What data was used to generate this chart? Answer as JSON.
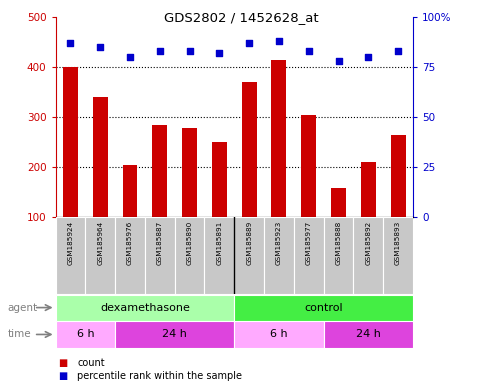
{
  "title": "GDS2802 / 1452628_at",
  "samples": [
    "GSM185924",
    "GSM185964",
    "GSM185976",
    "GSM185887",
    "GSM185890",
    "GSM185891",
    "GSM185889",
    "GSM185923",
    "GSM185977",
    "GSM185888",
    "GSM185892",
    "GSM185893"
  ],
  "counts": [
    400,
    340,
    205,
    285,
    278,
    250,
    370,
    415,
    305,
    158,
    210,
    265
  ],
  "percentile_ranks": [
    87,
    85,
    80,
    83,
    83,
    82,
    87,
    88,
    83,
    78,
    80,
    83
  ],
  "ylim_left": [
    100,
    500
  ],
  "ylim_right": [
    0,
    100
  ],
  "yticks_left": [
    100,
    200,
    300,
    400,
    500
  ],
  "yticks_right": [
    0,
    25,
    50,
    75,
    100
  ],
  "yticklabels_right": [
    "0",
    "25",
    "50",
    "75",
    "100%"
  ],
  "bar_color": "#cc0000",
  "scatter_color": "#0000cc",
  "agent_groups": [
    {
      "label": "dexamethasone",
      "start": 0,
      "end": 6,
      "color": "#aaffaa"
    },
    {
      "label": "control",
      "start": 6,
      "end": 12,
      "color": "#44ee44"
    }
  ],
  "time_groups": [
    {
      "label": "6 h",
      "start": 0,
      "end": 2,
      "color": "#ffaaff"
    },
    {
      "label": "24 h",
      "start": 2,
      "end": 6,
      "color": "#dd44dd"
    },
    {
      "label": "6 h",
      "start": 6,
      "end": 9,
      "color": "#ffaaff"
    },
    {
      "label": "24 h",
      "start": 9,
      "end": 12,
      "color": "#dd44dd"
    }
  ],
  "legend_items": [
    {
      "label": "count",
      "color": "#cc0000"
    },
    {
      "label": "percentile rank within the sample",
      "color": "#0000cc"
    }
  ],
  "bg_color": "#ffffff",
  "tick_label_color_left": "#cc0000",
  "tick_label_color_right": "#0000cc"
}
